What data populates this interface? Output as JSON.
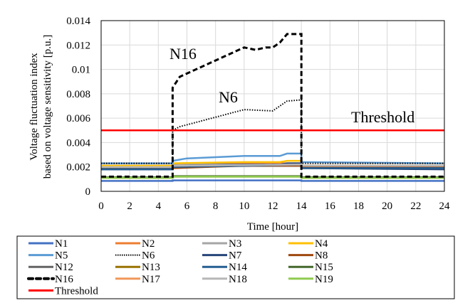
{
  "chart_data": {
    "type": "line",
    "xlabel": "Time [hour]",
    "ylabel": [
      "Voltage fluctuation index",
      "based on voltage sensitivity [p.u.]"
    ],
    "xlim": [
      0,
      24
    ],
    "ylim": [
      0,
      0.014
    ],
    "xticks": [
      "0",
      "2",
      "4",
      "6",
      "8",
      "10",
      "12",
      "14",
      "16",
      "18",
      "20",
      "22",
      "24"
    ],
    "yticks": [
      "0",
      "0.002",
      "0.004",
      "0.006",
      "0.008",
      "0.01",
      "0.012",
      "0.014"
    ],
    "grid": true,
    "legend_position": "bottom",
    "annotations": [
      {
        "text": "N16",
        "series": "N16"
      },
      {
        "text": "N6",
        "series": "N6"
      },
      {
        "text": "Threshold",
        "series": "Threshold"
      }
    ],
    "series": [
      {
        "name": "N1",
        "color": "#4472C4",
        "style": "solid",
        "x": [
          0,
          5,
          5,
          14,
          14,
          24
        ],
        "y": [
          0.00085,
          0.00085,
          0.0009,
          0.0009,
          0.00085,
          0.00085
        ]
      },
      {
        "name": "N2",
        "color": "#ED7D31",
        "style": "solid",
        "x": [
          0,
          5,
          5,
          10,
          14,
          14,
          24
        ],
        "y": [
          0.0021,
          0.0021,
          0.0022,
          0.0023,
          0.0023,
          0.0021,
          0.0021
        ]
      },
      {
        "name": "N3",
        "color": "#A5A5A5",
        "style": "solid",
        "x": [
          0,
          5,
          5,
          14,
          14,
          24
        ],
        "y": [
          0.0021,
          0.0021,
          0.0022,
          0.0022,
          0.0021,
          0.0021
        ]
      },
      {
        "name": "N4",
        "color": "#FFC000",
        "style": "solid",
        "x": [
          0,
          5,
          5,
          10,
          12.5,
          13,
          14,
          14,
          24
        ],
        "y": [
          0.0021,
          0.0021,
          0.0023,
          0.0024,
          0.0024,
          0.0025,
          0.0025,
          0.0021,
          0.0021
        ]
      },
      {
        "name": "N5",
        "color": "#5B9BD5",
        "style": "solid",
        "x": [
          0,
          5,
          5,
          6,
          10,
          12.5,
          13,
          14,
          14,
          24
        ],
        "y": [
          0.0023,
          0.0023,
          0.0025,
          0.0027,
          0.0029,
          0.0029,
          0.0031,
          0.0031,
          0.0024,
          0.0023
        ]
      },
      {
        "name": "N6",
        "color": "#000000",
        "style": "dotted",
        "x": [
          0,
          5,
          5,
          5.5,
          10,
          12,
          12.5,
          13,
          14,
          14,
          24
        ],
        "y": [
          0.0023,
          0.0023,
          0.005,
          0.0053,
          0.0067,
          0.0066,
          0.007,
          0.0074,
          0.0075,
          0.0023,
          0.0023
        ]
      },
      {
        "name": "N7",
        "color": "#264478",
        "style": "solid",
        "x": [
          0,
          5,
          5,
          10,
          12.5,
          13,
          14,
          14,
          24
        ],
        "y": [
          0.0018,
          0.0018,
          0.0021,
          0.0022,
          0.0022,
          0.0023,
          0.0023,
          0.0019,
          0.0018
        ]
      },
      {
        "name": "N8",
        "color": "#9E480E",
        "style": "solid",
        "x": [
          0,
          5,
          5,
          10,
          14,
          14,
          24
        ],
        "y": [
          0.0019,
          0.0019,
          0.0019,
          0.0021,
          0.0021,
          0.002,
          0.002
        ]
      },
      {
        "name": "N12",
        "color": "#636363",
        "style": "solid",
        "x": [
          0,
          5,
          5,
          10,
          14,
          14,
          24
        ],
        "y": [
          0.0019,
          0.0019,
          0.002,
          0.0021,
          0.0022,
          0.0019,
          0.0019
        ]
      },
      {
        "name": "N13",
        "color": "#997300",
        "style": "solid",
        "x": [
          0,
          5,
          5,
          14,
          14,
          24
        ],
        "y": [
          0.0011,
          0.0011,
          0.0012,
          0.0012,
          0.0011,
          0.0011
        ]
      },
      {
        "name": "N14",
        "color": "#255E91",
        "style": "solid",
        "x": [
          0,
          5,
          5,
          10,
          14,
          14,
          24
        ],
        "y": [
          0.0018,
          0.0018,
          0.002,
          0.0021,
          0.0022,
          0.0019,
          0.0019
        ]
      },
      {
        "name": "N15",
        "color": "#43682B",
        "style": "solid",
        "x": [
          0,
          5,
          5,
          14,
          14,
          24
        ],
        "y": [
          0.00115,
          0.00115,
          0.00125,
          0.00125,
          0.00115,
          0.00115
        ]
      },
      {
        "name": "N16",
        "color": "#000000",
        "style": "dashed",
        "x": [
          0,
          5,
          5,
          5.5,
          10,
          10.8,
          11.5,
          12,
          12.5,
          13,
          14,
          14,
          24
        ],
        "y": [
          0.0012,
          0.0012,
          0.0085,
          0.0094,
          0.0118,
          0.0116,
          0.0118,
          0.0118,
          0.0122,
          0.0129,
          0.0129,
          0.0012,
          0.0012
        ]
      },
      {
        "name": "N17",
        "color": "#F1975A",
        "style": "solid",
        "x": [
          0,
          5,
          5,
          14,
          14,
          24
        ],
        "y": [
          0.002,
          0.002,
          0.0021,
          0.0022,
          0.0021,
          0.0021
        ]
      },
      {
        "name": "N18",
        "color": "#B7B7B7",
        "style": "solid",
        "x": [
          0,
          5,
          5,
          14,
          14,
          24
        ],
        "y": [
          0.002,
          0.002,
          0.0021,
          0.0022,
          0.0021,
          0.0021
        ]
      },
      {
        "name": "N19",
        "color": "#8FCB4F",
        "style": "solid",
        "x": [
          0,
          5,
          5,
          14,
          14,
          24
        ],
        "y": [
          0.0011,
          0.0011,
          0.0012,
          0.0012,
          0.0011,
          0.0011
        ]
      },
      {
        "name": "Threshold",
        "color": "#FF0000",
        "style": "solid",
        "x": [
          0,
          24
        ],
        "y": [
          0.005,
          0.005
        ]
      }
    ]
  }
}
